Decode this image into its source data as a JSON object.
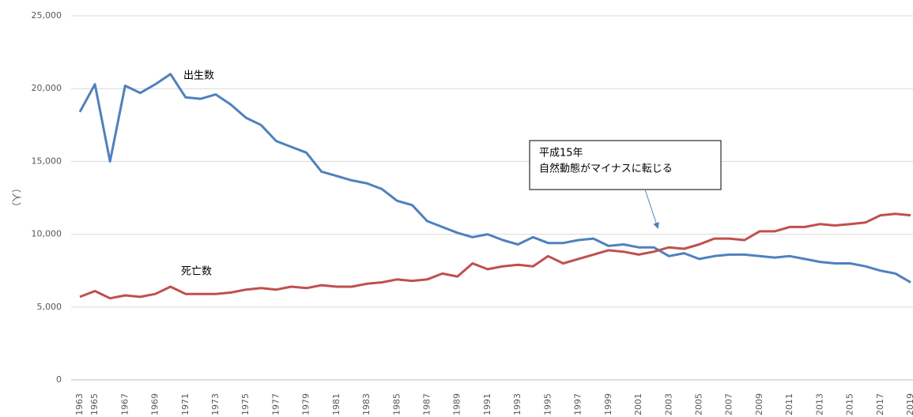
{
  "chart_data": {
    "type": "line",
    "y_label": "（人）",
    "annotations": [
      "出生数",
      "死亡数",
      "平成15年",
      "自然動態がマイナスに転じる"
    ],
    "categories": [
      "1963",
      "1965",
      null,
      "1967",
      null,
      "1969",
      null,
      "1971",
      null,
      "1973",
      null,
      "1975",
      null,
      "1977",
      null,
      "1979",
      null,
      "1981",
      null,
      "1983",
      null,
      "1985",
      null,
      "1987",
      null,
      "1989",
      null,
      "1991",
      null,
      "1993",
      null,
      "1995",
      null,
      "1997",
      null,
      "1999",
      null,
      "2001",
      null,
      "2003",
      null,
      "2005",
      null,
      "2007",
      null,
      "2009",
      null,
      "2011",
      null,
      "2013",
      null,
      "2015",
      null,
      "2017",
      null,
      "2019"
    ],
    "series": [
      {
        "name": "出生数",
        "color": "#4f81bd",
        "values": [
          18400,
          20300,
          15000,
          20200,
          19700,
          20300,
          21000,
          19400,
          19300,
          19600,
          18900,
          18000,
          17500,
          16400,
          16000,
          15600,
          14300,
          14000,
          13700,
          13500,
          13100,
          12300,
          12000,
          10900,
          10500,
          10100,
          9800,
          10000,
          9600,
          9300,
          9800,
          9400,
          9400,
          9600,
          9700,
          9200,
          9300,
          9100,
          9100,
          8500,
          8700,
          8300,
          8500,
          8600,
          8600,
          8500,
          8400,
          8500,
          8300,
          8100,
          8000,
          8000,
          7800,
          7500,
          7300,
          6700
        ]
      },
      {
        "name": "死亡数",
        "color": "#c0504d",
        "values": [
          5700,
          6100,
          5600,
          5800,
          5700,
          5900,
          6400,
          5900,
          5900,
          5900,
          6000,
          6200,
          6300,
          6200,
          6400,
          6300,
          6500,
          6400,
          6400,
          6600,
          6700,
          6900,
          6800,
          6900,
          7300,
          7100,
          8000,
          7600,
          7800,
          7900,
          7800,
          8500,
          8000,
          8300,
          8600,
          8900,
          8800,
          8600,
          8800,
          9100,
          9000,
          9300,
          9700,
          9700,
          9600,
          10200,
          10200,
          10500,
          10500,
          10700,
          10600,
          10700,
          10800,
          11300,
          11400,
          11300
        ]
      }
    ],
    "ylim": [
      0,
      25000
    ],
    "yticks": [
      0,
      {
        "value": 5000,
        "label": "5,000"
      },
      {
        "value": 10000,
        "label": "10,000"
      },
      {
        "value": 15000,
        "label": "15,000"
      },
      {
        "value": 20000,
        "label": "20,000"
      },
      {
        "value": 25000,
        "label": "25,000"
      }
    ],
    "grid": true
  }
}
